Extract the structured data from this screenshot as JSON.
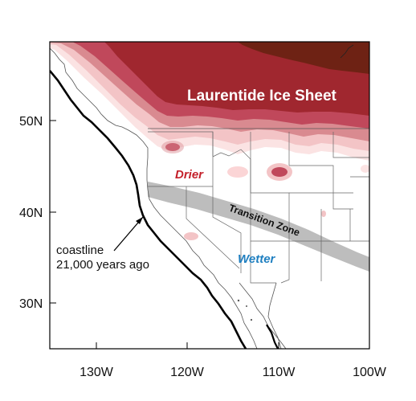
{
  "map": {
    "ice_sheet_label": "Laurentide Ice Sheet",
    "drier_label": "Drier",
    "wetter_label": "Wetter",
    "transition_label": "Transition Zone",
    "coastline_annotation": {
      "line1": "coastline",
      "line2": "21,000 years ago"
    },
    "lat_ticks": [
      "50N",
      "40N",
      "30N"
    ],
    "lon_ticks": [
      "130W",
      "120W",
      "110W",
      "100W"
    ],
    "extent": {
      "lon_min": -135,
      "lon_max": -100,
      "lat_min": 25,
      "lat_max": 58.5
    },
    "colors": {
      "ice_darkest": "#6e2214",
      "ice_dark": "#a0272f",
      "ice_mid": "#c0485b",
      "ice_light": "#d98a90",
      "pink_light": "#f3c4c6",
      "pink_lightest": "#fbe3e3",
      "transition_band": "#bdbdbd",
      "drier_text": "#c4202a",
      "wetter_text": "#1f7fc0",
      "coastline_past": "#000000"
    }
  }
}
